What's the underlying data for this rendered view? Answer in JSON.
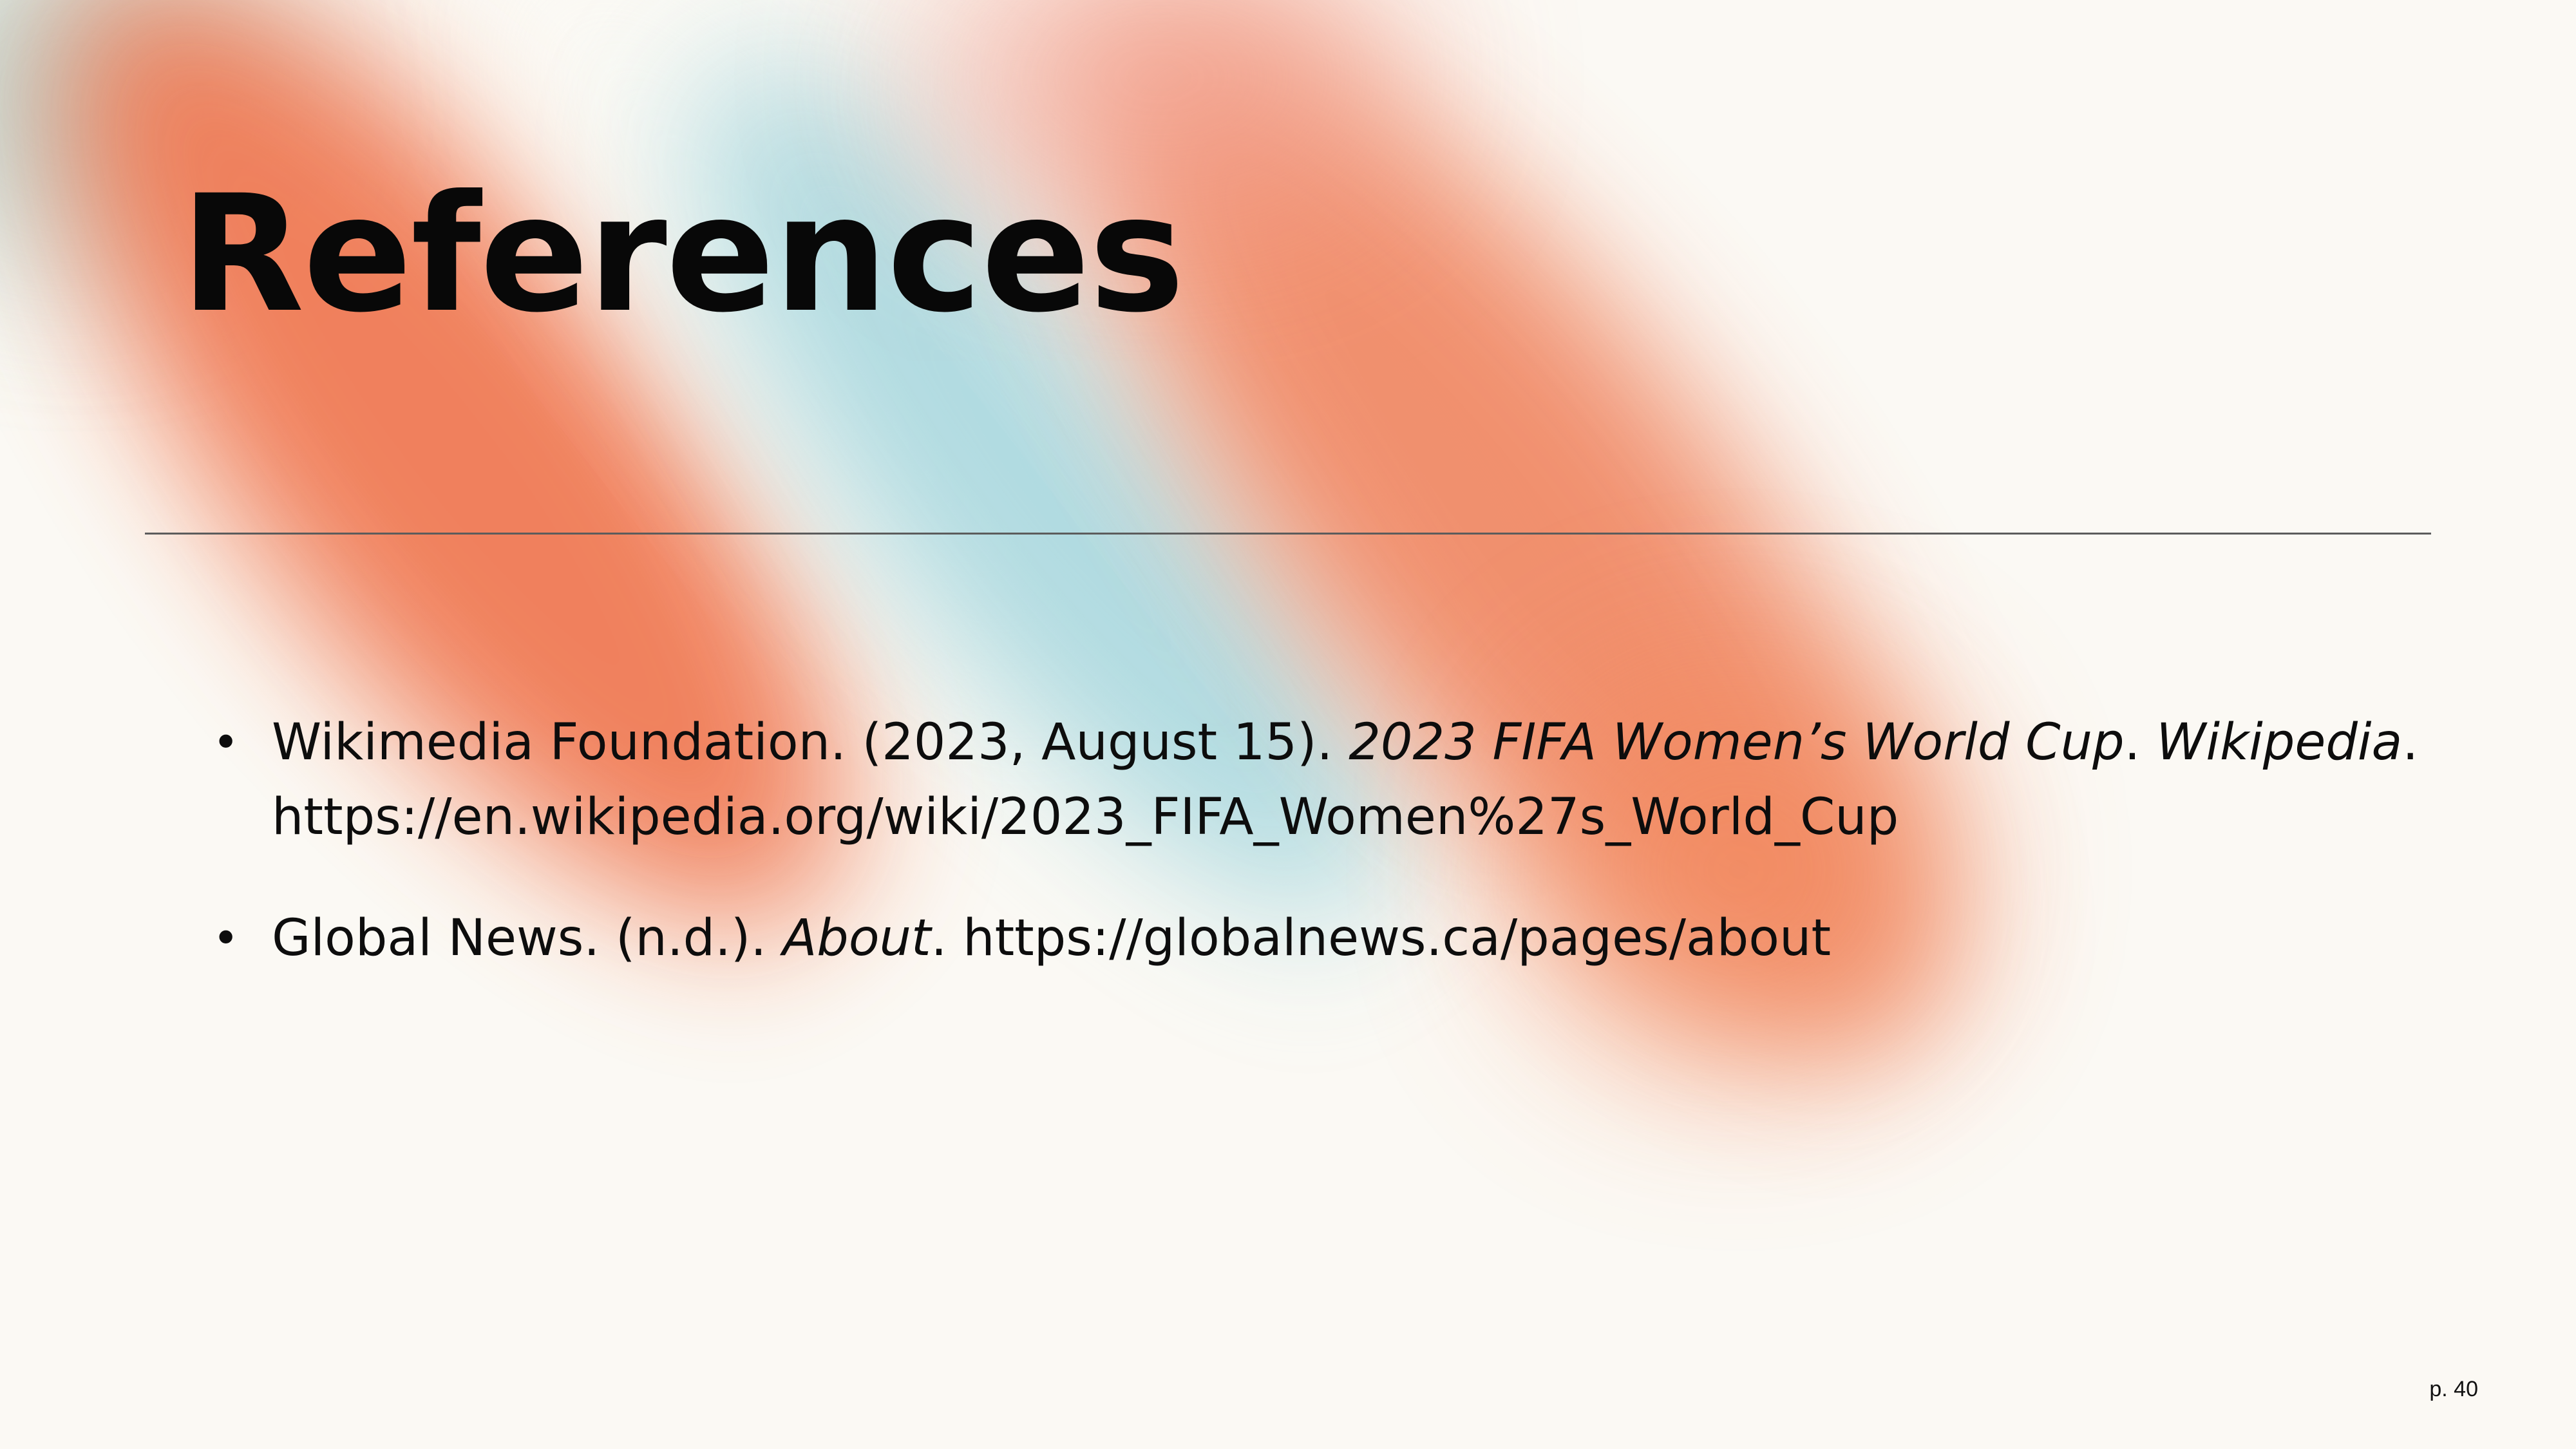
{
  "slide": {
    "title": "References",
    "page_number": "p. 40",
    "colors": {
      "background": "#fbf9f4",
      "orange": "#f07a55",
      "teal": "#a9d8df",
      "text": "#0c0c0c"
    },
    "references": [
      {
        "line1_plain": "Wikimedia Foundation. (2023, August 15). ",
        "line1_italic": "2023 FIFA Women’s World Cup",
        "line1_sep": ". ",
        "line1_italic2": "Wikipedia",
        "line1_end": ".",
        "line2_plain": "https://en.wikipedia.org/wiki/2023_FIFA_Women%27s_World_Cup"
      },
      {
        "line1_plain": "Global News. (n.d.). ",
        "line1_italic": "About",
        "line1_end": ". https://globalnews.ca/pages/about"
      }
    ]
  }
}
